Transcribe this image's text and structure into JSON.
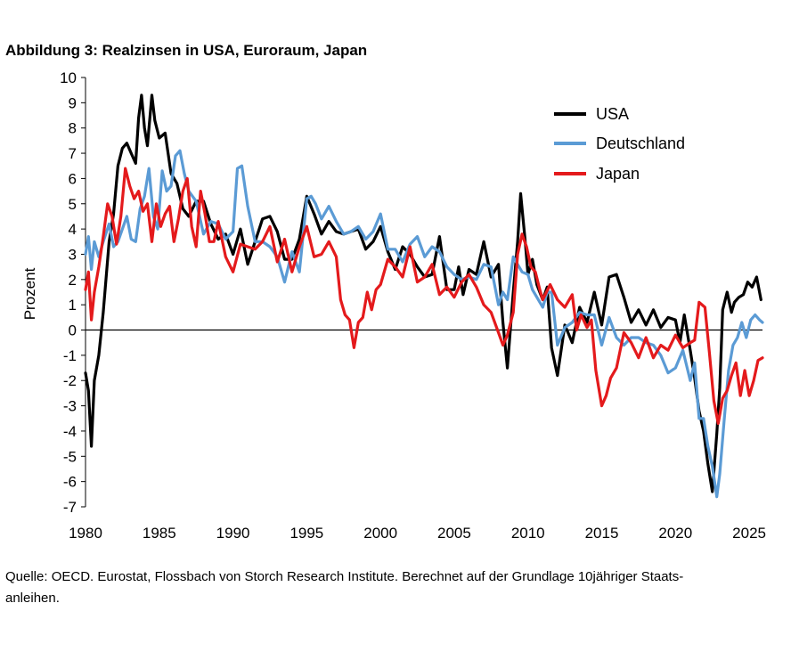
{
  "title": "Abbildung 3: Realzinsen in USA, Euroraum, Japan",
  "source": {
    "line1": "Quelle: OECD. Eurostat, Flossbach von Storch Research Institute. Berechnet auf der Grundlage 10jähriger Staats-",
    "line2": "anleihen."
  },
  "chart_data": {
    "type": "line",
    "title": "Abbildung 3: Realzinsen in USA, Euroraum, Japan",
    "xlabel": "",
    "ylabel": "Prozent",
    "xlim": [
      1980,
      2025.9
    ],
    "ylim": [
      -7,
      10
    ],
    "x_ticks": [
      1980,
      1985,
      1990,
      1995,
      2000,
      2005,
      2010,
      2015,
      2020,
      2025
    ],
    "y_ticks": [
      -7,
      -6,
      -5,
      -4,
      -3,
      -2,
      -1,
      0,
      1,
      2,
      3,
      4,
      5,
      6,
      7,
      8,
      9,
      10
    ],
    "legend_position": "top-right",
    "series": [
      {
        "name": "USA",
        "color": "#000000",
        "x": [
          1980.0,
          1980.2,
          1980.4,
          1980.6,
          1980.9,
          1981.2,
          1981.6,
          1981.9,
          1982.2,
          1982.5,
          1982.8,
          1983.1,
          1983.4,
          1983.6,
          1983.8,
          1984.0,
          1984.2,
          1984.5,
          1984.7,
          1985.0,
          1985.4,
          1985.8,
          1986.2,
          1986.6,
          1987.0,
          1987.5,
          1988.0,
          1988.5,
          1989.0,
          1989.5,
          1990.0,
          1990.5,
          1991.0,
          1991.5,
          1992.0,
          1992.5,
          1993.0,
          1993.5,
          1994.0,
          1994.5,
          1995.0,
          1995.5,
          1996.0,
          1996.5,
          1997.0,
          1997.5,
          1998.0,
          1998.5,
          1999.0,
          1999.5,
          2000.0,
          2000.5,
          2001.0,
          2001.5,
          2002.0,
          2002.5,
          2003.0,
          2003.5,
          2004.0,
          2004.5,
          2005.0,
          2005.3,
          2005.6,
          2006.0,
          2006.5,
          2007.0,
          2007.5,
          2008.0,
          2008.3,
          2008.6,
          2009.0,
          2009.3,
          2009.5,
          2009.8,
          2010.0,
          2010.3,
          2010.6,
          2011.0,
          2011.3,
          2011.6,
          2012.0,
          2012.5,
          2013.0,
          2013.5,
          2014.0,
          2014.5,
          2015.0,
          2015.5,
          2016.0,
          2016.5,
          2017.0,
          2017.5,
          2018.0,
          2018.5,
          2019.0,
          2019.5,
          2020.0,
          2020.3,
          2020.6,
          2021.0,
          2021.3,
          2021.6,
          2021.9,
          2022.2,
          2022.5,
          2022.8,
          2023.0,
          2023.2,
          2023.5,
          2023.8,
          2024.0,
          2024.3,
          2024.6,
          2024.9,
          2025.2,
          2025.5,
          2025.8
        ],
        "y": [
          -1.7,
          -2.4,
          -4.6,
          -2.0,
          -1.0,
          0.7,
          3.5,
          4.6,
          6.5,
          7.2,
          7.4,
          7.0,
          6.6,
          8.4,
          9.3,
          8.0,
          7.3,
          9.3,
          8.3,
          7.6,
          7.8,
          6.2,
          5.8,
          4.8,
          4.5,
          5.1,
          5.1,
          4.2,
          3.6,
          3.8,
          3.0,
          4.0,
          2.6,
          3.5,
          4.4,
          4.5,
          3.9,
          2.8,
          2.8,
          3.6,
          5.3,
          4.6,
          3.8,
          4.3,
          3.9,
          3.8,
          3.9,
          4.0,
          3.2,
          3.5,
          4.1,
          3.1,
          2.4,
          3.3,
          3.0,
          2.5,
          2.1,
          2.2,
          3.7,
          1.6,
          1.6,
          2.5,
          1.4,
          2.4,
          2.2,
          3.5,
          2.1,
          2.6,
          0.3,
          -1.5,
          1.5,
          3.5,
          5.4,
          3.6,
          2.2,
          2.8,
          1.8,
          1.2,
          1.7,
          -0.7,
          -1.8,
          0.2,
          -0.5,
          0.9,
          0.3,
          1.5,
          0.2,
          2.1,
          2.2,
          1.3,
          0.3,
          0.8,
          0.2,
          0.8,
          0.1,
          0.5,
          0.4,
          -0.5,
          0.6,
          -0.8,
          -1.9,
          -3.2,
          -4.0,
          -5.3,
          -6.4,
          -4.1,
          -2.3,
          0.8,
          1.5,
          0.7,
          1.1,
          1.3,
          1.4,
          1.9,
          1.7,
          2.1,
          1.2
        ]
      },
      {
        "name": "Deutschland",
        "color": "#5B9BD5",
        "x": [
          1980.0,
          1980.2,
          1980.4,
          1980.6,
          1980.9,
          1981.2,
          1981.6,
          1981.9,
          1982.2,
          1982.5,
          1982.8,
          1983.1,
          1983.4,
          1983.7,
          1984.0,
          1984.3,
          1984.6,
          1984.9,
          1985.2,
          1985.5,
          1985.8,
          1986.1,
          1986.4,
          1986.7,
          1987.0,
          1987.5,
          1988.0,
          1988.5,
          1989.0,
          1989.5,
          1990.0,
          1990.3,
          1990.6,
          1991.0,
          1991.5,
          1992.0,
          1992.5,
          1993.0,
          1993.5,
          1994.0,
          1994.5,
          1995.0,
          1995.3,
          1995.6,
          1996.0,
          1996.5,
          1997.0,
          1997.5,
          1998.0,
          1998.5,
          1999.0,
          1999.5,
          2000.0,
          2000.5,
          2001.0,
          2001.5,
          2002.0,
          2002.5,
          2003.0,
          2003.5,
          2004.0,
          2004.5,
          2005.0,
          2005.5,
          2006.0,
          2006.5,
          2007.0,
          2007.5,
          2008.0,
          2008.3,
          2008.6,
          2009.0,
          2009.3,
          2009.6,
          2010.0,
          2010.3,
          2010.6,
          2011.0,
          2011.3,
          2011.6,
          2012.0,
          2012.5,
          2013.0,
          2013.5,
          2014.0,
          2014.5,
          2015.0,
          2015.5,
          2016.0,
          2016.5,
          2017.0,
          2017.5,
          2018.0,
          2018.5,
          2019.0,
          2019.5,
          2020.0,
          2020.5,
          2021.0,
          2021.3,
          2021.6,
          2021.9,
          2022.2,
          2022.5,
          2022.8,
          2023.0,
          2023.3,
          2023.6,
          2023.9,
          2024.2,
          2024.5,
          2024.8,
          2025.1,
          2025.4,
          2025.7,
          2025.9
        ],
        "y": [
          3.0,
          3.7,
          2.4,
          3.5,
          2.9,
          3.5,
          4.2,
          3.3,
          3.5,
          4.0,
          4.5,
          3.6,
          3.5,
          4.8,
          5.3,
          6.4,
          4.5,
          4.0,
          6.3,
          5.5,
          5.7,
          6.9,
          7.1,
          6.2,
          5.5,
          5.1,
          3.8,
          4.3,
          4.2,
          3.6,
          3.9,
          6.4,
          6.5,
          4.9,
          3.5,
          3.5,
          3.3,
          2.9,
          1.9,
          3.1,
          2.3,
          5.2,
          5.3,
          5.0,
          4.4,
          4.9,
          4.3,
          3.8,
          3.9,
          4.1,
          3.6,
          3.9,
          4.6,
          3.2,
          3.2,
          2.7,
          3.4,
          3.7,
          2.9,
          3.3,
          3.1,
          2.5,
          2.2,
          2.0,
          2.1,
          2.0,
          2.6,
          2.5,
          1.0,
          1.5,
          1.2,
          2.9,
          2.6,
          2.3,
          2.2,
          1.6,
          1.3,
          0.9,
          1.5,
          1.5,
          -0.6,
          0.1,
          0.3,
          0.7,
          0.6,
          0.6,
          -0.6,
          0.5,
          -0.3,
          -0.6,
          -0.3,
          -0.3,
          -0.5,
          -0.6,
          -1.0,
          -1.7,
          -1.5,
          -0.8,
          -2.0,
          -1.3,
          -3.5,
          -3.5,
          -4.6,
          -5.4,
          -6.6,
          -5.7,
          -3.6,
          -1.6,
          -0.6,
          -0.3,
          0.3,
          -0.3,
          0.4,
          0.6,
          0.4,
          0.3
        ]
      },
      {
        "name": "Japan",
        "color": "#E41A1C",
        "x": [
          1980.0,
          1980.2,
          1980.4,
          1980.6,
          1980.9,
          1981.2,
          1981.5,
          1981.8,
          1982.1,
          1982.4,
          1982.7,
          1983.0,
          1983.3,
          1983.6,
          1983.9,
          1984.2,
          1984.5,
          1984.8,
          1985.1,
          1985.4,
          1985.7,
          1986.0,
          1986.3,
          1986.6,
          1986.9,
          1987.2,
          1987.5,
          1987.8,
          1988.1,
          1988.4,
          1988.7,
          1989.0,
          1989.5,
          1990.0,
          1990.5,
          1991.0,
          1991.5,
          1992.0,
          1992.5,
          1993.0,
          1993.5,
          1994.0,
          1994.5,
          1995.0,
          1995.5,
          1996.0,
          1996.5,
          1997.0,
          1997.3,
          1997.6,
          1997.9,
          1998.2,
          1998.5,
          1998.8,
          1999.1,
          1999.4,
          1999.7,
          2000.0,
          2000.5,
          2001.0,
          2001.5,
          2002.0,
          2002.5,
          2003.0,
          2003.5,
          2004.0,
          2004.5,
          2005.0,
          2005.5,
          2006.0,
          2006.5,
          2007.0,
          2007.5,
          2008.0,
          2008.3,
          2008.6,
          2009.0,
          2009.3,
          2009.6,
          2009.9,
          2010.2,
          2010.5,
          2010.8,
          2011.0,
          2011.5,
          2012.0,
          2012.5,
          2013.0,
          2013.3,
          2013.6,
          2014.0,
          2014.3,
          2014.6,
          2015.0,
          2015.3,
          2015.6,
          2016.0,
          2016.5,
          2017.0,
          2017.5,
          2018.0,
          2018.5,
          2019.0,
          2019.5,
          2020.0,
          2020.5,
          2021.0,
          2021.3,
          2021.6,
          2022.0,
          2022.3,
          2022.6,
          2022.9,
          2023.2,
          2023.5,
          2023.8,
          2024.1,
          2024.4,
          2024.7,
          2025.0,
          2025.3,
          2025.6,
          2025.9
        ],
        "y": [
          1.6,
          2.3,
          0.4,
          1.5,
          2.5,
          3.7,
          5.0,
          4.5,
          3.4,
          4.5,
          6.4,
          5.7,
          5.2,
          5.5,
          4.7,
          5.0,
          3.5,
          5.0,
          4.1,
          4.6,
          4.9,
          3.5,
          4.4,
          5.5,
          6.0,
          4.1,
          3.3,
          5.5,
          4.6,
          3.5,
          3.5,
          4.3,
          2.9,
          2.3,
          3.4,
          3.3,
          3.2,
          3.5,
          4.1,
          2.7,
          3.6,
          2.3,
          3.3,
          4.1,
          2.9,
          3.0,
          3.5,
          2.9,
          1.2,
          0.6,
          0.4,
          -0.7,
          0.3,
          0.5,
          1.5,
          0.8,
          1.6,
          1.8,
          2.8,
          2.5,
          2.1,
          3.3,
          1.9,
          2.1,
          2.6,
          1.4,
          1.7,
          1.3,
          1.9,
          2.2,
          1.7,
          1.0,
          0.7,
          -0.1,
          -0.6,
          -0.2,
          0.7,
          3.0,
          3.8,
          3.3,
          2.5,
          2.3,
          1.6,
          1.2,
          1.8,
          1.2,
          0.9,
          1.4,
          0.0,
          0.6,
          0.1,
          0.4,
          -1.6,
          -3.0,
          -2.6,
          -1.9,
          -1.5,
          -0.1,
          -0.5,
          -1.1,
          -0.3,
          -1.1,
          -0.6,
          -0.8,
          -0.2,
          -0.7,
          -0.5,
          -0.4,
          1.1,
          0.9,
          -0.9,
          -2.8,
          -3.7,
          -2.7,
          -2.4,
          -1.8,
          -1.3,
          -2.6,
          -1.6,
          -2.6,
          -2.0,
          -1.2,
          -1.1
        ]
      }
    ]
  }
}
